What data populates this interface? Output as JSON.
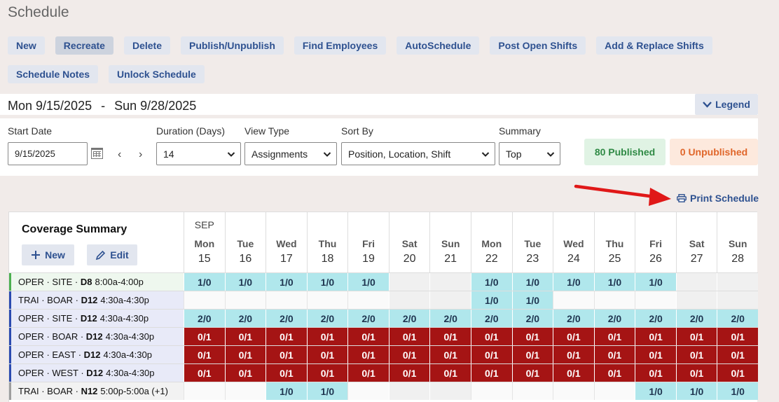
{
  "page": {
    "title": "Schedule"
  },
  "toolbar": {
    "row1": [
      "New",
      "Recreate",
      "Delete",
      "Publish/Unpublish",
      "Find Employees",
      "AutoSchedule",
      "Post Open Shifts",
      "Add & Replace Shifts"
    ],
    "row2": [
      "Schedule Notes",
      "Unlock Schedule"
    ],
    "active": "Recreate"
  },
  "date_range": {
    "start": "Mon 9/15/2025",
    "separator": "-",
    "end": "Sun 9/28/2025"
  },
  "legend_label": "Legend",
  "filters": {
    "start_date": {
      "label": "Start Date",
      "value": "9/15/2025"
    },
    "duration": {
      "label": "Duration (Days)",
      "value": "14"
    },
    "view_type": {
      "label": "View Type",
      "value": "Assignments"
    },
    "sort_by": {
      "label": "Sort By",
      "value": "Position, Location, Shift"
    },
    "summary": {
      "label": "Summary",
      "value": "Top"
    }
  },
  "status": {
    "published": "80 Published",
    "unpublished": "0 Unpublished"
  },
  "print_label": "Print Schedule",
  "coverage": {
    "title": "Coverage Summary",
    "new_label": "New",
    "edit_label": "Edit",
    "month": "SEP",
    "days": [
      {
        "dow": "Mon",
        "num": "15"
      },
      {
        "dow": "Tue",
        "num": "16"
      },
      {
        "dow": "Wed",
        "num": "17"
      },
      {
        "dow": "Thu",
        "num": "18"
      },
      {
        "dow": "Fri",
        "num": "19"
      },
      {
        "dow": "Sat",
        "num": "20"
      },
      {
        "dow": "Sun",
        "num": "21"
      },
      {
        "dow": "Mon",
        "num": "22"
      },
      {
        "dow": "Tue",
        "num": "23"
      },
      {
        "dow": "Wed",
        "num": "24"
      },
      {
        "dow": "Thu",
        "num": "25"
      },
      {
        "dow": "Fri",
        "num": "26"
      },
      {
        "dow": "Sat",
        "num": "27"
      },
      {
        "dow": "Sun",
        "num": "28"
      }
    ],
    "rows": [
      {
        "prefix": "OPER · SITE · ",
        "code": "D8",
        "time": "8:00a-4:00p",
        "bar": "#4caf50",
        "bg": "#eef7ee",
        "cells": [
          "1/0",
          "1/0",
          "1/0",
          "1/0",
          "1/0",
          "",
          "",
          "1/0",
          "1/0",
          "1/0",
          "1/0",
          "1/0",
          "",
          ""
        ]
      },
      {
        "prefix": "TRAI · BOAR · ",
        "code": "D12",
        "time": "4:30a-4:30p",
        "bar": "#2b4bb0",
        "bg": "#e8eaf8",
        "cells": [
          "",
          "",
          "",
          "",
          "",
          "",
          "",
          "1/0",
          "1/0",
          "",
          "",
          "",
          "",
          ""
        ]
      },
      {
        "prefix": "OPER · SITE · ",
        "code": "D12",
        "time": "4:30a-4:30p",
        "bar": "#2b4bb0",
        "bg": "#e8eaf8",
        "cells": [
          "2/0",
          "2/0",
          "2/0",
          "2/0",
          "2/0",
          "2/0",
          "2/0",
          "2/0",
          "2/0",
          "2/0",
          "2/0",
          "2/0",
          "2/0",
          "2/0"
        ]
      },
      {
        "prefix": "OPER · BOAR · ",
        "code": "D12",
        "time": "4:30a-4:30p",
        "bar": "#2b4bb0",
        "bg": "#e8eaf8",
        "cells": [
          "0/1",
          "0/1",
          "0/1",
          "0/1",
          "0/1",
          "0/1",
          "0/1",
          "0/1",
          "0/1",
          "0/1",
          "0/1",
          "0/1",
          "0/1",
          "0/1"
        ]
      },
      {
        "prefix": "OPER · EAST · ",
        "code": "D12",
        "time": "4:30a-4:30p",
        "bar": "#2b4bb0",
        "bg": "#e8eaf8",
        "cells": [
          "0/1",
          "0/1",
          "0/1",
          "0/1",
          "0/1",
          "0/1",
          "0/1",
          "0/1",
          "0/1",
          "0/1",
          "0/1",
          "0/1",
          "0/1",
          "0/1"
        ]
      },
      {
        "prefix": "OPER · WEST · ",
        "code": "D12",
        "time": "4:30a-4:30p",
        "bar": "#2b4bb0",
        "bg": "#e8eaf8",
        "cells": [
          "0/1",
          "0/1",
          "0/1",
          "0/1",
          "0/1",
          "0/1",
          "0/1",
          "0/1",
          "0/1",
          "0/1",
          "0/1",
          "0/1",
          "0/1",
          "0/1"
        ]
      },
      {
        "prefix": "TRAI · BOAR · ",
        "code": "N12",
        "time": "5:00p-5:00a (+1)",
        "bar": "#9e9e9e",
        "bg": "#f2f2f2",
        "cells": [
          "",
          "",
          "1/0",
          "1/0",
          "",
          "",
          "",
          "",
          "",
          "",
          "",
          "1/0",
          "1/0",
          "1/0"
        ]
      }
    ]
  },
  "colors": {
    "accent": "#2e5190",
    "open": "#b0e7ec",
    "uncovered": "#a51414",
    "annotation_arrow": "#e01818"
  }
}
